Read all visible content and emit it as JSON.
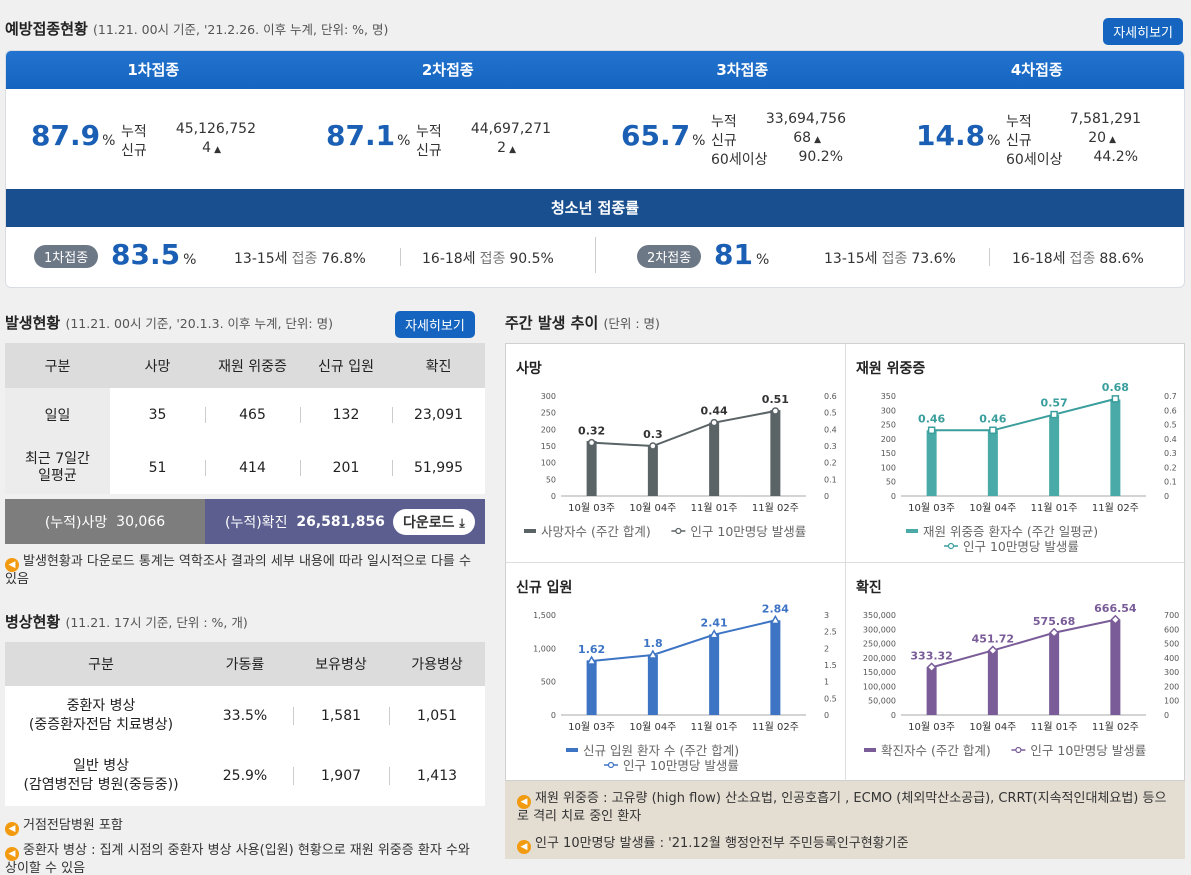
{
  "vaccination": {
    "title": "예방접종현황",
    "subtitle": "(11.21. 00시 기준, '21.2.26. 이후 누계, 단위: %, 명)",
    "more_label": "자세히보기",
    "dose_headers": [
      "1차접종",
      "2차접종",
      "3차접종",
      "4차접종"
    ],
    "doses": [
      {
        "pct": "87.9",
        "unit": "%",
        "cum_label": "누적",
        "cum": "45,126,752",
        "new_label": "신규",
        "new": "4"
      },
      {
        "pct": "87.1",
        "unit": "%",
        "cum_label": "누적",
        "cum": "44,697,271",
        "new_label": "신규",
        "new": "2"
      },
      {
        "pct": "65.7",
        "unit": "%",
        "cum_label": "누적",
        "cum": "33,694,756",
        "new_label": "신규",
        "new": "68",
        "elder_label": "60세이상",
        "elder": "90.2%"
      },
      {
        "pct": "14.8",
        "unit": "%",
        "cum_label": "누적",
        "cum": "7,581,291",
        "new_label": "신규",
        "new": "20",
        "elder_label": "60세이상",
        "elder": "44.2%"
      }
    ],
    "up_arrow": "▲",
    "teen": {
      "title": "청소년 접종률",
      "first": {
        "badge": "1차접종",
        "pct": "83.5",
        "unit": "%",
        "a_age": "13-15세",
        "a_lbl": "접종",
        "a_val": "76.8%",
        "b_age": "16-18세",
        "b_lbl": "접종",
        "b_val": "90.5%"
      },
      "second": {
        "badge": "2차접종",
        "pct": "81",
        "unit": "%",
        "a_age": "13-15세",
        "a_lbl": "접종",
        "a_val": "73.6%",
        "b_age": "16-18세",
        "b_lbl": "접종",
        "b_val": "88.6%"
      }
    }
  },
  "occurrence": {
    "title": "발생현황",
    "subtitle": "(11.21. 00시 기준, '20.1.3. 이후 누계, 단위: 명)",
    "more_label": "자세히보기",
    "headers": [
      "구분",
      "사망",
      "재원 위중증",
      "신규 입원",
      "확진"
    ],
    "rows": [
      {
        "label": "일일",
        "values": [
          "35",
          "465",
          "132",
          "23,091"
        ]
      },
      {
        "label": "최근 7일간\n일평균",
        "values": [
          "51",
          "414",
          "201",
          "51,995"
        ]
      }
    ],
    "cum_death_label": "(누적)사망",
    "cum_death": "30,066",
    "cum_conf_label": "(누적)확진",
    "cum_conf": "26,581,856",
    "download_label": "다운로드",
    "note": "발생현황과 다운로드 통계는 역학조사 결과의 세부 내용에 따라 일시적으로 다를 수 있음"
  },
  "beds": {
    "title": "병상현황",
    "subtitle": "(11.21. 17시 기준, 단위 : %, 개)",
    "headers": [
      "구분",
      "가동률",
      "보유병상",
      "가용병상"
    ],
    "rows": [
      {
        "label1": "중환자 병상",
        "label2": "(중증환자전담 치료병상)",
        "values": [
          "33.5%",
          "1,581",
          "1,051"
        ]
      },
      {
        "label1": "일반 병상",
        "label2": "(감염병전담 병원(중등중))",
        "values": [
          "25.9%",
          "1,907",
          "1,413"
        ]
      }
    ],
    "notes": [
      "거점전담병원 포함",
      "중환자 병상 : 집계 시점의 중환자 병상 사용(입원) 현황으로 재원 위중증 환자 수와 상이할 수 있음"
    ]
  },
  "weekly": {
    "title": "주간 발생 추이",
    "subtitle": "(단위 : 명)",
    "notes": [
      "재원 위중증 : 고유량 (high flow) 산소요법, 인공호흡기 , ECMO (체외막산소공급), CRRT(지속적인대체요법) 등으로 격리 치료 중인 환자",
      "인구 10만명당 발생률 : '21.12월 행정안전부 주민등록인구현황기준"
    ]
  },
  "chart_data": [
    {
      "type": "bar",
      "title": "사망",
      "categories": [
        "10월 03주",
        "10월 04주",
        "11월 01주",
        "11월 02주"
      ],
      "series": [
        {
          "name": "사망자수 (주간 합계)",
          "type": "bar",
          "values": [
            165,
            152,
            220,
            258
          ]
        },
        {
          "name": "인구 10만명당 발생률",
          "type": "line",
          "values": [
            0.32,
            0.3,
            0.44,
            0.51
          ]
        }
      ],
      "y_left_ticks": [
        "0",
        "50",
        "100",
        "150",
        "200",
        "250",
        "300"
      ],
      "y_right_ticks": [
        "0",
        "0.1",
        "0.2",
        "0.3",
        "0.4",
        "0.5",
        "0.6"
      ],
      "ylim": [
        0,
        300
      ],
      "y2lim": [
        0,
        0.6
      ],
      "bar_color": "#5a6366",
      "line_color": "#5a6366"
    },
    {
      "type": "bar",
      "title": "재원 위중증",
      "categories": [
        "10월 03주",
        "10월 04주",
        "11월 01주",
        "11월 02주"
      ],
      "series": [
        {
          "name": "재원 위중증 환자수 (주간 일평균)",
          "type": "bar",
          "values": [
            230,
            230,
            284,
            338
          ]
        },
        {
          "name": "인구 10만명당 발생률",
          "type": "line",
          "values": [
            0.46,
            0.46,
            0.57,
            0.68
          ]
        }
      ],
      "y_left_ticks": [
        "0",
        "50",
        "100",
        "150",
        "200",
        "250",
        "300",
        "350"
      ],
      "y_right_ticks": [
        "0",
        "0.1",
        "0.2",
        "0.3",
        "0.4",
        "0.5",
        "0.6",
        "0.7"
      ],
      "ylim": [
        0,
        350
      ],
      "y2lim": [
        0,
        0.7
      ],
      "bar_color": "#4aaaa8",
      "line_color": "#3a9e9c"
    },
    {
      "type": "bar",
      "title": "신규 입원",
      "categories": [
        "10월 03주",
        "10월 04주",
        "11월 01주",
        "11월 02주"
      ],
      "series": [
        {
          "name": "신규 입원 환자 수 (주간 합계)",
          "type": "bar",
          "values": [
            820,
            900,
            1210,
            1420
          ]
        },
        {
          "name": "인구 10만명당 발생률",
          "type": "line",
          "values": [
            1.62,
            1.8,
            2.41,
            2.84
          ]
        }
      ],
      "y_left_ticks": [
        "0",
        "500",
        "1,000",
        "1,500"
      ],
      "y_right_ticks": [
        "0",
        "0.5",
        "1",
        "1.5",
        "2",
        "2.5",
        "3"
      ],
      "ylim": [
        0,
        1500
      ],
      "y2lim": [
        0,
        3
      ],
      "bar_color": "#3d74c4",
      "line_color": "#3d74c4"
    },
    {
      "type": "bar",
      "title": "확진",
      "categories": [
        "10월 03주",
        "10월 04주",
        "11월 01주",
        "11월 02주"
      ],
      "series": [
        {
          "name": "확진자수 (주간 합계)",
          "type": "bar",
          "values": [
            166500,
            225800,
            287800,
            333200
          ]
        },
        {
          "name": "인구 10만명당 발생률",
          "type": "line",
          "values": [
            333.32,
            451.72,
            575.68,
            666.54
          ]
        }
      ],
      "y_left_ticks": [
        "0",
        "50,000",
        "100,000",
        "150,000",
        "200,000",
        "250,000",
        "300,000",
        "350,000"
      ],
      "y_right_ticks": [
        "0",
        "100",
        "200",
        "300",
        "400",
        "500",
        "600",
        "700"
      ],
      "ylim": [
        0,
        350000
      ],
      "y2lim": [
        0,
        700
      ],
      "bar_color": "#7a5c98",
      "line_color": "#7a5c98"
    }
  ]
}
